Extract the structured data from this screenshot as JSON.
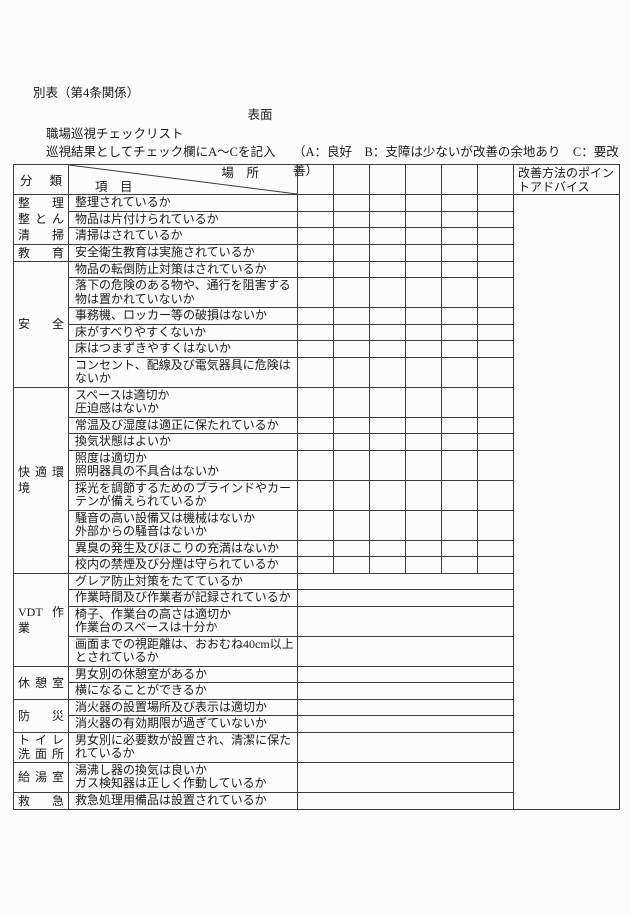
{
  "page": {
    "note_top": "別表（第4条関係）",
    "side_label": "表面",
    "title": "職場巡視チェックリスト",
    "instruction": "巡視結果としてチェック欄にA～Cを記入",
    "legend": "（A：良好　B：支障は少ないが改善の余地あり　C：要改善）"
  },
  "table": {
    "header": {
      "category": "分　類",
      "diag_top_right": "場　所",
      "diag_bottom_left": "項　目",
      "check_cols": 6,
      "advice_lines": [
        "改善方法のポイン",
        "トアドバイス"
      ]
    },
    "groups": [
      {
        "category_lines": [
          "整理",
          "整とん",
          "清掃"
        ],
        "rows": [
          {
            "item_lines": [
              "整理されているか"
            ],
            "checks": "grid",
            "h": "single"
          },
          {
            "item_lines": [
              "物品は片付けられているか"
            ],
            "checks": "grid",
            "h": "single"
          },
          {
            "item_lines": [
              "清掃はされているか"
            ],
            "checks": "grid",
            "h": "single"
          }
        ]
      },
      {
        "category_lines": [
          "教育"
        ],
        "rows": [
          {
            "item_lines": [
              "安全衛生教育は実施されているか"
            ],
            "checks": "grid",
            "h": "single"
          }
        ]
      },
      {
        "category_lines": [
          "安全"
        ],
        "rows": [
          {
            "item_lines": [
              "物品の転倒防止対策はされているか"
            ],
            "checks": "grid",
            "h": "single"
          },
          {
            "item_lines": [
              "落下の危険のある物や、通行を阻害する",
              "物は置かれていないか"
            ],
            "checks": "grid",
            "h": "double"
          },
          {
            "item_lines": [
              "事務機、ロッカー等の破損はないか"
            ],
            "checks": "grid",
            "h": "single"
          },
          {
            "item_lines": [
              "床がすべりやすくないか"
            ],
            "checks": "grid",
            "h": "single"
          },
          {
            "item_lines": [
              "床はつまずきやすくはないか"
            ],
            "checks": "grid",
            "h": "single"
          },
          {
            "item_lines": [
              "コンセント、配線及び電気器具に危険は",
              "ないか"
            ],
            "checks": "grid",
            "h": "double"
          }
        ]
      },
      {
        "category_lines": [
          "快適環境"
        ],
        "rows": [
          {
            "item_lines": [
              "スペースは適切か",
              "圧迫感はないか"
            ],
            "checks": "grid",
            "h": "double"
          },
          {
            "item_lines": [
              "常温及び湿度は適正に保たれているか"
            ],
            "checks": "grid",
            "h": "single"
          },
          {
            "item_lines": [
              "換気状態はよいか"
            ],
            "checks": "grid",
            "h": "single"
          },
          {
            "item_lines": [
              "照度は適切か",
              "照明器具の不具合はないか"
            ],
            "checks": "grid",
            "h": "double"
          },
          {
            "item_lines": [
              "採光を調節するためのブラインドやカー",
              "テンが備えられているか"
            ],
            "checks": "grid",
            "h": "double"
          },
          {
            "item_lines": [
              "騒音の高い設備又は機械はないか",
              "外部からの騒音はないか"
            ],
            "checks": "grid",
            "h": "double"
          },
          {
            "item_lines": [
              "異臭の発生及びほこりの充満はないか"
            ],
            "checks": "grid",
            "h": "single"
          },
          {
            "item_lines": [
              "校内の禁煙及び分煙は守られているか"
            ],
            "checks": "grid",
            "h": "single"
          }
        ]
      },
      {
        "category_lines": [
          "VDT作業"
        ],
        "rows": [
          {
            "item_lines": [
              "グレア防止対策をたてているか"
            ],
            "checks": "merged",
            "h": "single"
          },
          {
            "item_lines": [
              "作業時間及び作業者が記録されているか"
            ],
            "checks": "merged",
            "h": "single"
          },
          {
            "item_lines": [
              "椅子、作業台の高さは適切か",
              "作業台のスペースは十分か"
            ],
            "checks": "merged",
            "h": "double"
          },
          {
            "item_lines": [
              "画面までの視距離は、おおむね40cm以上",
              "とされているか"
            ],
            "checks": "merged",
            "h": "double"
          }
        ]
      },
      {
        "category_lines": [
          "休憩室"
        ],
        "rows": [
          {
            "item_lines": [
              "男女別の休憩室があるか"
            ],
            "checks": "merged",
            "h": "single"
          },
          {
            "item_lines": [
              "横になることができるか"
            ],
            "checks": "merged",
            "h": "single"
          }
        ]
      },
      {
        "category_lines": [
          "防災"
        ],
        "rows": [
          {
            "item_lines": [
              "消火器の設置場所及び表示は適切か"
            ],
            "checks": "merged",
            "h": "single"
          },
          {
            "item_lines": [
              "消火器の有効期限が過ぎていないか"
            ],
            "checks": "merged",
            "h": "single"
          }
        ]
      },
      {
        "category_lines": [
          "トイレ",
          "洗面所"
        ],
        "rows": [
          {
            "item_lines": [
              "男女別に必要数が設置され、清潔に保た",
              "れているか"
            ],
            "checks": "merged",
            "h": "double"
          }
        ]
      },
      {
        "category_lines": [
          "給湯室"
        ],
        "rows": [
          {
            "item_lines": [
              "湯沸し器の換気は良いか",
              "ガス検知器は正しく作動しているか"
            ],
            "checks": "merged",
            "h": "double"
          }
        ]
      },
      {
        "category_lines": [
          "救急"
        ],
        "rows": [
          {
            "item_lines": [
              "救急処理用備品は設置されているか"
            ],
            "checks": "merged",
            "h": "single"
          }
        ]
      }
    ]
  },
  "colors": {
    "border": "#3c3c3c",
    "text": "#1b1b1b",
    "background": "#fcfcfc"
  }
}
